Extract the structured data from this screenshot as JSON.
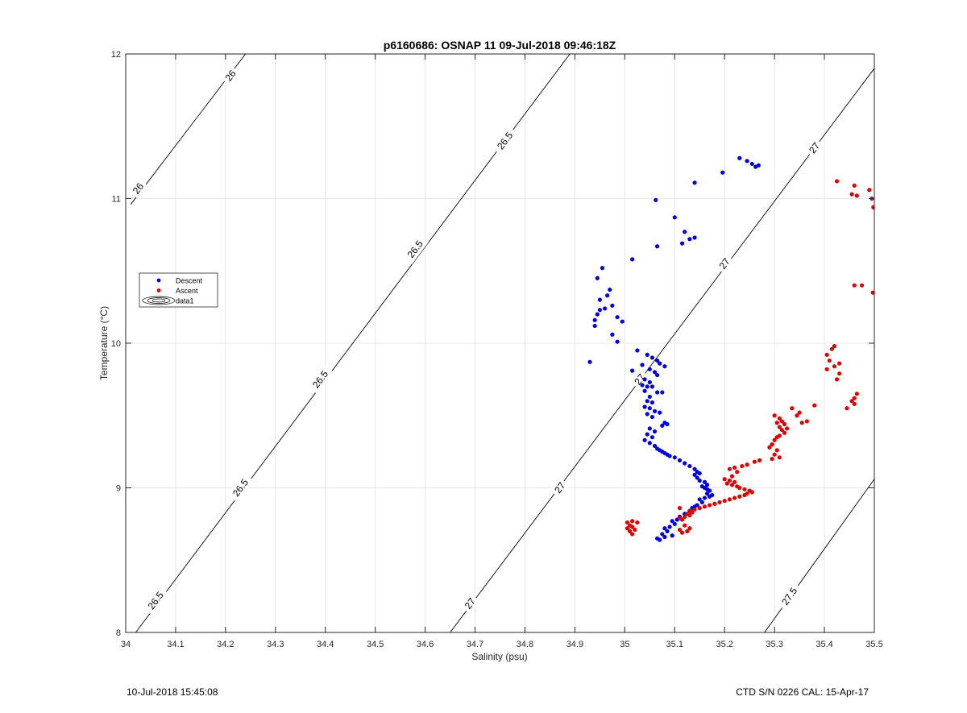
{
  "chart_data": {
    "type": "scatter",
    "title": "p6160686: OSNAP 11 09-Jul-2018 09:46:18Z",
    "xlabel": "Salinity (psu)",
    "ylabel": "Temperature (°C)",
    "xlim": [
      34,
      35.5
    ],
    "ylim": [
      8,
      12
    ],
    "x_ticks": [
      "34",
      "34.1",
      "34.2",
      "34.3",
      "34.4",
      "34.5",
      "34.6",
      "34.7",
      "34.8",
      "34.9",
      "35",
      "35.1",
      "35.2",
      "35.3",
      "35.4",
      "35.5"
    ],
    "y_ticks": [
      "8",
      "9",
      "10",
      "11",
      "12"
    ],
    "grid": true,
    "legend_position": "left",
    "legend": [
      {
        "label": "Descent",
        "color": "#0000e0",
        "marker": "dot"
      },
      {
        "label": "Ascent",
        "color": "#e00000",
        "marker": "dot"
      },
      {
        "label": "data1",
        "color": "#000000",
        "marker": "contour"
      }
    ],
    "isopycnals": [
      {
        "level": 26,
        "label": "26",
        "points": [
          [
            34.01,
            10.96
          ],
          [
            34.24,
            12.0
          ]
        ],
        "labels_at": [
          [
            34.025,
            11.07
          ],
          [
            34.21,
            11.85
          ]
        ]
      },
      {
        "level": 26.5,
        "label": "26.5",
        "points": [
          [
            34.02,
            8.0
          ],
          [
            34.89,
            12.0
          ]
        ],
        "labels_at": [
          [
            34.06,
            8.22
          ],
          [
            34.23,
            9.0
          ],
          [
            34.39,
            9.75
          ],
          [
            34.58,
            10.65
          ],
          [
            34.76,
            11.4
          ]
        ]
      },
      {
        "level": 27,
        "label": "27",
        "points": [
          [
            34.65,
            8.0
          ],
          [
            35.5,
            11.9
          ]
        ],
        "labels_at": [
          [
            34.69,
            8.2
          ],
          [
            34.87,
            9.0
          ],
          [
            35.03,
            9.75
          ],
          [
            35.2,
            10.55
          ],
          [
            35.38,
            11.35
          ]
        ]
      },
      {
        "level": 27.5,
        "label": "27.5",
        "points": [
          [
            35.28,
            8.0
          ],
          [
            35.5,
            9.06
          ]
        ],
        "labels_at": [
          [
            35.33,
            8.25
          ]
        ]
      }
    ],
    "series": [
      {
        "name": "Descent",
        "color": "#0000e0",
        "points": [
          [
            35.23,
            11.28
          ],
          [
            35.245,
            11.26
          ],
          [
            35.255,
            11.24
          ],
          [
            35.262,
            11.22
          ],
          [
            35.268,
            11.23
          ],
          [
            35.196,
            11.18
          ],
          [
            35.14,
            11.11
          ],
          [
            35.062,
            10.99
          ],
          [
            35.1,
            10.87
          ],
          [
            35.12,
            10.77
          ],
          [
            35.14,
            10.73
          ],
          [
            35.13,
            10.72
          ],
          [
            35.115,
            10.69
          ],
          [
            35.065,
            10.67
          ],
          [
            35.015,
            10.58
          ],
          [
            34.955,
            10.52
          ],
          [
            34.945,
            10.45
          ],
          [
            34.97,
            10.37
          ],
          [
            34.965,
            10.33
          ],
          [
            34.95,
            10.3
          ],
          [
            34.975,
            10.26
          ],
          [
            34.96,
            10.24
          ],
          [
            34.95,
            10.23
          ],
          [
            34.945,
            10.2
          ],
          [
            34.985,
            10.18
          ],
          [
            34.94,
            10.16
          ],
          [
            34.94,
            10.12
          ],
          [
            34.995,
            10.15
          ],
          [
            34.975,
            10.06
          ],
          [
            34.985,
            10.01
          ],
          [
            34.93,
            9.87
          ],
          [
            35.025,
            9.95
          ],
          [
            35.045,
            9.92
          ],
          [
            35.055,
            9.9
          ],
          [
            35.065,
            9.88
          ],
          [
            35.07,
            9.86
          ],
          [
            35.08,
            9.84
          ],
          [
            35.035,
            9.85
          ],
          [
            35.015,
            9.81
          ],
          [
            35.05,
            9.82
          ],
          [
            35.06,
            9.8
          ],
          [
            35.065,
            9.78
          ],
          [
            35.04,
            9.75
          ],
          [
            35.05,
            9.73
          ],
          [
            35.035,
            9.71
          ],
          [
            35.045,
            9.7
          ],
          [
            35.055,
            9.7
          ],
          [
            35.04,
            9.67
          ],
          [
            35.065,
            9.66
          ],
          [
            35.075,
            9.66
          ],
          [
            35.05,
            9.63
          ],
          [
            35.045,
            9.6
          ],
          [
            35.055,
            9.59
          ],
          [
            35.04,
            9.56
          ],
          [
            35.05,
            9.55
          ],
          [
            35.06,
            9.53
          ],
          [
            35.045,
            9.51
          ],
          [
            35.055,
            9.49
          ],
          [
            35.07,
            9.52
          ],
          [
            35.08,
            9.45
          ],
          [
            35.075,
            9.43
          ],
          [
            35.085,
            9.44
          ],
          [
            35.05,
            9.41
          ],
          [
            35.06,
            9.39
          ],
          [
            35.045,
            9.37
          ],
          [
            35.055,
            9.35
          ],
          [
            35.04,
            9.33
          ],
          [
            35.05,
            9.31
          ],
          [
            35.06,
            9.29
          ],
          [
            35.065,
            9.27
          ],
          [
            35.07,
            9.26
          ],
          [
            35.075,
            9.25
          ],
          [
            35.08,
            9.24
          ],
          [
            35.085,
            9.23
          ],
          [
            35.09,
            9.22
          ],
          [
            35.1,
            9.21
          ],
          [
            35.11,
            9.19
          ],
          [
            35.12,
            9.17
          ],
          [
            35.13,
            9.15
          ],
          [
            35.14,
            9.13
          ],
          [
            35.145,
            9.11
          ],
          [
            35.15,
            9.1
          ],
          [
            35.14,
            9.09
          ],
          [
            35.145,
            9.07
          ],
          [
            35.15,
            9.05
          ],
          [
            35.16,
            9.04
          ],
          [
            35.165,
            9.02
          ],
          [
            35.155,
            9.01
          ],
          [
            35.16,
            9.0
          ],
          [
            35.165,
            8.99
          ],
          [
            35.17,
            8.98
          ],
          [
            35.165,
            8.96
          ],
          [
            35.17,
            8.94
          ],
          [
            35.16,
            8.93
          ],
          [
            35.175,
            8.95
          ],
          [
            35.15,
            8.92
          ],
          [
            35.155,
            8.9
          ],
          [
            35.145,
            8.88
          ],
          [
            35.14,
            8.87
          ],
          [
            35.135,
            8.86
          ],
          [
            35.13,
            8.84
          ],
          [
            35.12,
            8.82
          ],
          [
            35.11,
            8.8
          ],
          [
            35.105,
            8.78
          ],
          [
            35.095,
            8.77
          ],
          [
            35.1,
            8.75
          ],
          [
            35.09,
            8.73
          ],
          [
            35.08,
            8.72
          ],
          [
            35.085,
            8.7
          ],
          [
            35.075,
            8.68
          ],
          [
            35.095,
            8.67
          ],
          [
            35.065,
            8.65
          ],
          [
            35.07,
            8.64
          ],
          [
            35.08,
            8.66
          ]
        ]
      },
      {
        "name": "Ascent",
        "color": "#e00000",
        "points": [
          [
            35.425,
            11.12
          ],
          [
            35.46,
            11.09
          ],
          [
            35.455,
            11.03
          ],
          [
            35.465,
            11.02
          ],
          [
            35.49,
            11.06
          ],
          [
            35.495,
            11.0
          ],
          [
            35.498,
            10.94
          ],
          [
            35.46,
            10.4
          ],
          [
            35.475,
            10.4
          ],
          [
            35.497,
            10.35
          ],
          [
            35.42,
            9.98
          ],
          [
            35.415,
            9.96
          ],
          [
            35.405,
            9.92
          ],
          [
            35.41,
            9.88
          ],
          [
            35.43,
            9.86
          ],
          [
            35.42,
            9.84
          ],
          [
            35.405,
            9.82
          ],
          [
            35.43,
            9.79
          ],
          [
            35.425,
            9.75
          ],
          [
            35.465,
            9.65
          ],
          [
            35.46,
            9.62
          ],
          [
            35.455,
            9.6
          ],
          [
            35.46,
            9.58
          ],
          [
            35.445,
            9.55
          ],
          [
            35.38,
            9.57
          ],
          [
            35.335,
            9.55
          ],
          [
            35.365,
            9.46
          ],
          [
            35.355,
            9.45
          ],
          [
            35.35,
            9.52
          ],
          [
            35.345,
            9.5
          ],
          [
            35.3,
            9.5
          ],
          [
            35.31,
            9.48
          ],
          [
            35.315,
            9.46
          ],
          [
            35.305,
            9.45
          ],
          [
            35.32,
            9.44
          ],
          [
            35.31,
            9.42
          ],
          [
            35.325,
            9.41
          ],
          [
            35.315,
            9.4
          ],
          [
            35.32,
            9.38
          ],
          [
            35.31,
            9.36
          ],
          [
            35.305,
            9.35
          ],
          [
            35.3,
            9.33
          ],
          [
            35.295,
            9.3
          ],
          [
            35.29,
            9.28
          ],
          [
            35.305,
            9.26
          ],
          [
            35.3,
            9.23
          ],
          [
            35.31,
            9.21
          ],
          [
            35.295,
            9.2
          ],
          [
            35.27,
            9.19
          ],
          [
            35.26,
            9.18
          ],
          [
            35.245,
            9.16
          ],
          [
            35.235,
            9.15
          ],
          [
            35.22,
            9.14
          ],
          [
            35.21,
            9.13
          ],
          [
            35.225,
            9.11
          ],
          [
            35.215,
            9.08
          ],
          [
            35.2,
            9.06
          ],
          [
            35.21,
            9.05
          ],
          [
            35.22,
            9.04
          ],
          [
            35.205,
            9.03
          ],
          [
            35.215,
            9.02
          ],
          [
            35.225,
            9.01
          ],
          [
            35.23,
            9.0
          ],
          [
            35.24,
            8.99
          ],
          [
            35.25,
            8.98
          ],
          [
            35.255,
            8.97
          ],
          [
            35.245,
            8.96
          ],
          [
            35.24,
            8.95
          ],
          [
            35.23,
            8.94
          ],
          [
            35.22,
            8.93
          ],
          [
            35.21,
            8.92
          ],
          [
            35.2,
            8.91
          ],
          [
            35.19,
            8.9
          ],
          [
            35.18,
            8.89
          ],
          [
            35.17,
            8.88
          ],
          [
            35.16,
            8.87
          ],
          [
            35.15,
            8.86
          ],
          [
            35.14,
            8.85
          ],
          [
            35.13,
            8.84
          ],
          [
            35.135,
            8.83
          ],
          [
            35.125,
            8.82
          ],
          [
            35.13,
            8.81
          ],
          [
            35.12,
            8.8
          ],
          [
            35.11,
            8.79
          ],
          [
            35.115,
            8.78
          ],
          [
            35.12,
            8.74
          ],
          [
            35.11,
            8.71
          ],
          [
            35.115,
            8.69
          ],
          [
            35.125,
            8.7
          ],
          [
            35.13,
            8.72
          ],
          [
            35.11,
            8.86
          ],
          [
            35.015,
            8.77
          ],
          [
            35.005,
            8.76
          ],
          [
            35.025,
            8.76
          ],
          [
            35.01,
            8.74
          ],
          [
            35.015,
            8.73
          ],
          [
            35.005,
            8.72
          ],
          [
            35.02,
            8.71
          ],
          [
            35.01,
            8.7
          ],
          [
            35.015,
            8.68
          ]
        ]
      }
    ]
  },
  "footer": {
    "left_text": "10-Jul-2018 15:45:08",
    "right_text": "CTD S/N 0226  CAL: 15-Apr-17"
  }
}
